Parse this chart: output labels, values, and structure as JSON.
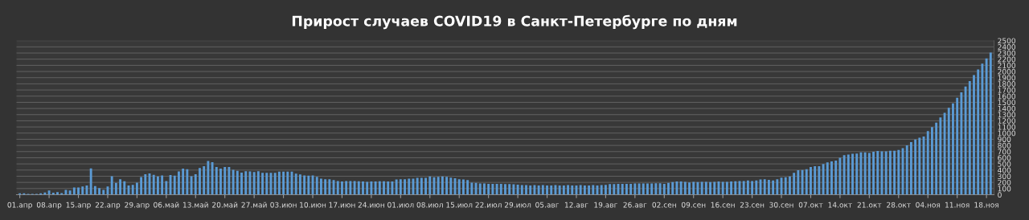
{
  "chart_data": {
    "type": "bar",
    "title": "Прирост случаев COVID19 в Санкт-Петербурге по дням",
    "categories": [
      "01.апр",
      null,
      null,
      null,
      null,
      null,
      null,
      "08.апр",
      null,
      null,
      null,
      null,
      null,
      null,
      "15.апр",
      null,
      null,
      null,
      null,
      null,
      null,
      "22.апр",
      null,
      null,
      null,
      null,
      null,
      null,
      "29.апр",
      null,
      null,
      null,
      null,
      null,
      null,
      "06.май",
      null,
      null,
      null,
      null,
      null,
      null,
      "13.май",
      null,
      null,
      null,
      null,
      null,
      null,
      "20.май",
      null,
      null,
      null,
      null,
      null,
      null,
      "27.май",
      null,
      null,
      null,
      null,
      null,
      null,
      "03.июн",
      null,
      null,
      null,
      null,
      null,
      null,
      "10.июн",
      null,
      null,
      null,
      null,
      null,
      null,
      "17.июн",
      null,
      null,
      null,
      null,
      null,
      null,
      "24.июн",
      null,
      null,
      null,
      null,
      null,
      null,
      "01.июл",
      null,
      null,
      null,
      null,
      null,
      null,
      "08.июл",
      null,
      null,
      null,
      null,
      null,
      null,
      "15.июл",
      null,
      null,
      null,
      null,
      null,
      null,
      "22.июл",
      null,
      null,
      null,
      null,
      null,
      null,
      "29.июл",
      null,
      null,
      null,
      null,
      null,
      null,
      "05.авг",
      null,
      null,
      null,
      null,
      null,
      null,
      "12.авг",
      null,
      null,
      null,
      null,
      null,
      null,
      "19.авг",
      null,
      null,
      null,
      null,
      null,
      null,
      "26.авг",
      null,
      null,
      null,
      null,
      null,
      null,
      "02.сен",
      null,
      null,
      null,
      null,
      null,
      null,
      "09.сен",
      null,
      null,
      null,
      null,
      null,
      null,
      "16.сен",
      null,
      null,
      null,
      null,
      null,
      null,
      "23.сен",
      null,
      null,
      null,
      null,
      null,
      null,
      "30.сен",
      null,
      null,
      null,
      null,
      null,
      null,
      "07.окт",
      null,
      null,
      null,
      null,
      null,
      null,
      "14.окт",
      null,
      null,
      null,
      null,
      null,
      null,
      "21.окт",
      null,
      null,
      null,
      null,
      null,
      null,
      "28.окт",
      null,
      null,
      null,
      null,
      null,
      null,
      "04.ноя",
      null,
      null,
      null,
      null,
      null,
      null,
      "11.ноя",
      null,
      null,
      null,
      null,
      null,
      null,
      "18.ноя",
      null
    ],
    "values": [
      23,
      23,
      14,
      14,
      14,
      23,
      36,
      68,
      32,
      41,
      27,
      77,
      68,
      118,
      118,
      132,
      150,
      428,
      141,
      109,
      77,
      132,
      300,
      191,
      250,
      218,
      150,
      159,
      196,
      287,
      332,
      346,
      323,
      296,
      314,
      223,
      318,
      309,
      378,
      423,
      414,
      300,
      332,
      432,
      464,
      546,
      528,
      450,
      423,
      450,
      450,
      405,
      387,
      359,
      382,
      378,
      369,
      382,
      355,
      355,
      355,
      355,
      373,
      373,
      373,
      373,
      341,
      328,
      314,
      309,
      314,
      291,
      259,
      250,
      250,
      237,
      223,
      214,
      223,
      223,
      223,
      218,
      214,
      209,
      214,
      214,
      218,
      218,
      214,
      214,
      246,
      250,
      250,
      259,
      259,
      273,
      273,
      273,
      296,
      282,
      291,
      296,
      291,
      278,
      268,
      250,
      246,
      237,
      196,
      191,
      182,
      182,
      177,
      177,
      177,
      177,
      173,
      173,
      168,
      164,
      155,
      155,
      150,
      155,
      150,
      155,
      150,
      150,
      155,
      150,
      150,
      155,
      150,
      150,
      155,
      150,
      150,
      155,
      150,
      155,
      160,
      173,
      173,
      177,
      177,
      177,
      177,
      182,
      182,
      182,
      182,
      182,
      186,
      186,
      177,
      191,
      205,
      214,
      214,
      209,
      200,
      209,
      205,
      209,
      209,
      205,
      209,
      214,
      209,
      209,
      214,
      218,
      223,
      223,
      232,
      223,
      232,
      246,
      250,
      241,
      232,
      250,
      278,
      282,
      296,
      355,
      396,
      400,
      414,
      450,
      464,
      464,
      500,
      523,
      541,
      555,
      600,
      641,
      650,
      664,
      669,
      687,
      687,
      678,
      696,
      710,
      705,
      705,
      714,
      714,
      728,
      755,
      800,
      855,
      896,
      924,
      946,
      1033,
      1097,
      1169,
      1256,
      1329,
      1411,
      1483,
      1574,
      1661,
      1756,
      1843,
      1943,
      2034,
      2129,
      2211,
      2307
    ],
    "color": "#5b9bd5",
    "ylim": [
      0,
      2500
    ],
    "yticks": [
      0,
      100,
      200,
      300,
      400,
      500,
      600,
      700,
      800,
      900,
      1000,
      1100,
      1200,
      1300,
      1400,
      1500,
      1600,
      1700,
      1800,
      1900,
      2000,
      2100,
      2200,
      2300,
      2400,
      2500
    ],
    "grid": "y"
  }
}
